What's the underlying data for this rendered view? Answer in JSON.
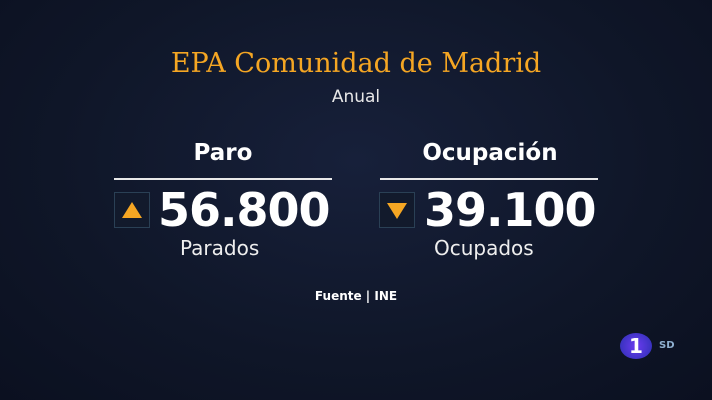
{
  "title": "EPA Comunidad de Madrid",
  "subtitle": "Anual",
  "colors": {
    "accent": "#f5a623",
    "background": "#0f1628"
  },
  "paro": {
    "heading": "Paro",
    "value": "56.800",
    "label": "Parados",
    "trend": "up",
    "icon": "triangle-up-icon"
  },
  "ocupacion": {
    "heading": "Ocupación",
    "value": "39.100",
    "label": "Ocupados",
    "trend": "down",
    "icon": "triangle-down-icon"
  },
  "source": "Fuente | INE",
  "channel": {
    "logo": "1",
    "quality": "SD"
  }
}
